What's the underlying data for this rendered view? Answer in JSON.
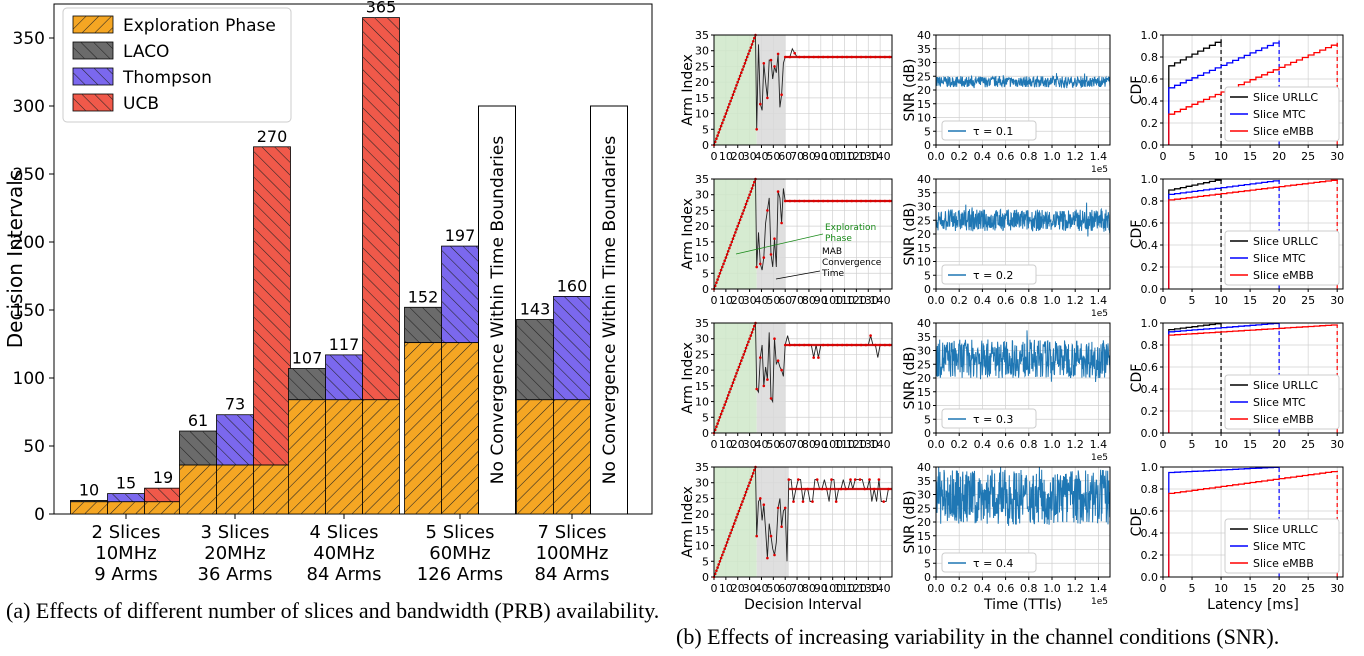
{
  "captions": {
    "a": "(a) Effects of different number of slices and bandwidth (PRB) availability.",
    "b": "(b) Effects of increasing variability in the channel conditions (SNR)."
  },
  "colors": {
    "exploration": "#f5a623",
    "laco": "#6b6b6b",
    "thompson": "#7b68ee",
    "ucb": "#f0594a",
    "urllc": "#000000",
    "mtc": "#0000ff",
    "embb": "#ff0000",
    "snr": "#1f77b4",
    "green_band": "#cfe8c9",
    "gray_band": "#d9d9d9"
  },
  "chart_data": [
    {
      "type": "bar",
      "ylabel": "Decision Intervals",
      "xlabel": "",
      "ylim": [
        0,
        375
      ],
      "yticks": [
        0,
        50,
        100,
        150,
        200,
        250,
        300,
        350
      ],
      "legend": {
        "placement": "top-left",
        "entries": [
          "Exploration Phase",
          "LACO",
          "Thompson",
          "UCB"
        ]
      },
      "categories": [
        [
          "2 Slices",
          "10MHz",
          "9 Arms"
        ],
        [
          "3 Slices",
          "20MHz",
          "36 Arms"
        ],
        [
          "4 Slices",
          "40MHz",
          "84 Arms"
        ],
        [
          "5 Slices",
          "60MHz",
          "126 Arms"
        ],
        [
          "7 Slices",
          "100MHz",
          "84 Arms"
        ]
      ],
      "series": [
        {
          "name": "LACO",
          "values": [
            10,
            61,
            107,
            152,
            143
          ]
        },
        {
          "name": "Thompson",
          "values": [
            15,
            73,
            117,
            197,
            160
          ]
        },
        {
          "name": "UCB",
          "values": [
            19,
            270,
            365,
            null,
            null
          ]
        }
      ],
      "exploration_phase": [
        9,
        36,
        84,
        126,
        84
      ],
      "no_convergence_label": "No Convergence Within Time Boundaries",
      "no_convergence_height": 300
    },
    {
      "type": "line",
      "panel": "arm-index",
      "xlabel": "Decision Interval",
      "ylabel": "Arm Index",
      "xlim": [
        0,
        150
      ],
      "ylim": [
        0,
        35
      ],
      "xticks": [
        0,
        10,
        20,
        30,
        40,
        50,
        60,
        70,
        80,
        90,
        100,
        110,
        120,
        130,
        140
      ],
      "yticks": [
        0,
        5,
        10,
        15,
        20,
        25,
        30,
        35
      ],
      "grid": true,
      "exploration_band": [
        0,
        36
      ],
      "convergence_band": [
        36,
        60
      ],
      "annotations": {
        "exploration": "Exploration Phase",
        "mab_1": "MAB",
        "mab_2": "Convergence",
        "mab_3": "Time"
      },
      "converged_arm": 28
    },
    {
      "type": "line",
      "panel": "snr",
      "xlabel": "Time (TTIs)",
      "ylabel": "SNR (dB)",
      "xlim": [
        0,
        1.5
      ],
      "ylim": [
        0,
        40
      ],
      "xticks": [
        "0.0",
        "0.2",
        "0.4",
        "0.6",
        "0.8",
        "1.0",
        "1.2",
        "1.4"
      ],
      "yticks": [
        0,
        5,
        10,
        15,
        20,
        25,
        30,
        35,
        40
      ],
      "offset_label": "1e5",
      "grid": true,
      "series": [
        {
          "name": "τ = 0.1",
          "mean": 23,
          "spread": 2
        },
        {
          "name": "τ = 0.2",
          "mean": 25,
          "spread": 4
        },
        {
          "name": "τ = 0.3",
          "mean": 27,
          "spread": 7
        },
        {
          "name": "τ = 0.4",
          "mean": 29,
          "spread": 10
        }
      ]
    },
    {
      "type": "line",
      "panel": "cdf",
      "xlabel": "Latency [ms]",
      "ylabel": "CDF",
      "xlim": [
        0,
        31
      ],
      "ylim": [
        0,
        1
      ],
      "xticks": [
        0,
        5,
        10,
        15,
        20,
        25,
        30
      ],
      "yticks": [
        "0.0",
        "0.2",
        "0.4",
        "0.6",
        "0.8",
        "1.0"
      ],
      "grid": true,
      "legend": [
        "Slice URLLC",
        "Slice MTC",
        "Slice eMBB"
      ],
      "deadlines": [
        10,
        20,
        30
      ],
      "rows": [
        {
          "urllc": [
            0.72,
            0.96
          ],
          "mtc": [
            0.52,
            0.95
          ],
          "embb": [
            0.28,
            0.93
          ]
        },
        {
          "urllc": [
            0.9,
            1.0
          ],
          "mtc": [
            0.86,
            0.99
          ],
          "embb": [
            0.81,
            0.995
          ]
        },
        {
          "urllc": [
            0.94,
            1.0
          ],
          "mtc": [
            0.92,
            1.0
          ],
          "embb": [
            0.89,
            0.985
          ]
        },
        {
          "urllc": [
            0.95,
            1.0
          ],
          "mtc": [
            0.95,
            1.0
          ],
          "embb": [
            0.76,
            0.965
          ]
        }
      ]
    }
  ]
}
